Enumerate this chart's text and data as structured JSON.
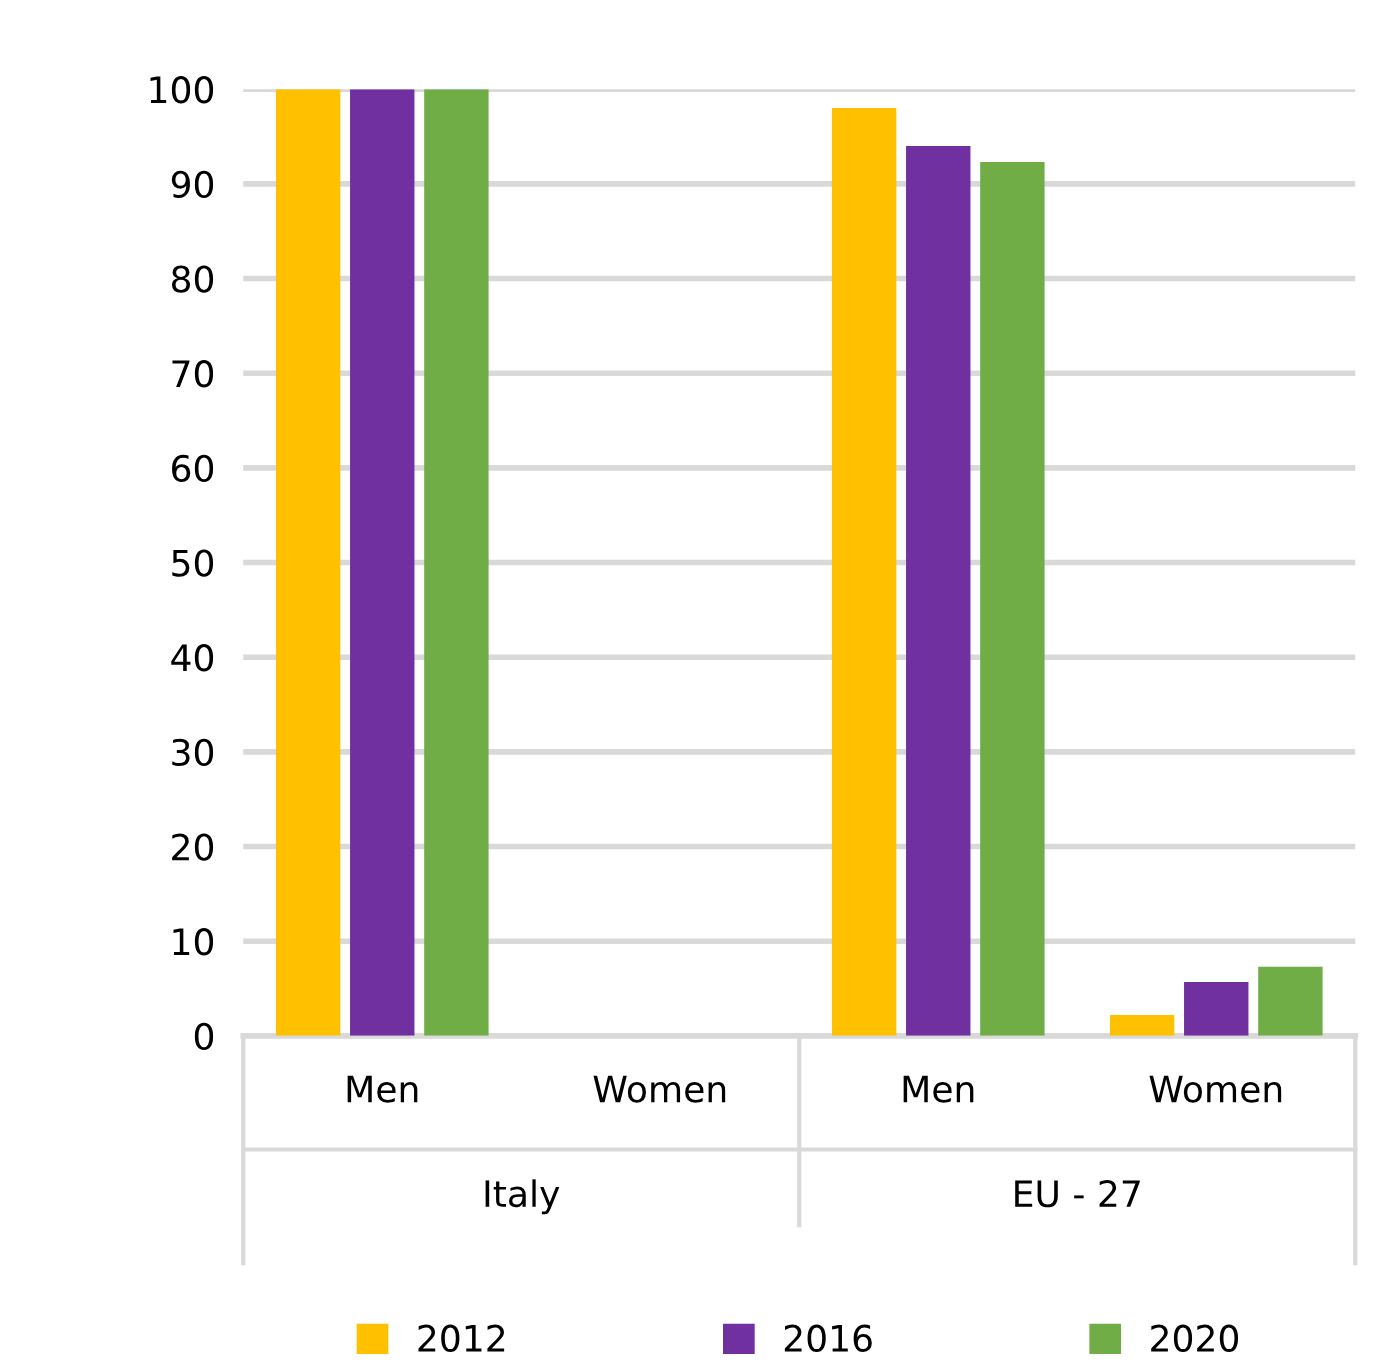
{
  "chart_data": {
    "type": "bar",
    "categories": [
      "Men",
      "Women",
      "Men",
      "Women"
    ],
    "series": [
      {
        "name": "2012",
        "color": "#ffc000",
        "values": [
          100,
          0,
          98,
          2.2
        ]
      },
      {
        "name": "2016",
        "color": "#7030a0",
        "values": [
          100,
          0,
          94,
          5.7
        ]
      },
      {
        "name": "2020",
        "color": "#70ad47",
        "values": [
          100,
          0,
          92.3,
          7.3
        ]
      }
    ],
    "annotations": [
      "Italy",
      "EU - 27"
    ],
    "ylim": [
      0,
      100
    ],
    "yticks": [
      0,
      10,
      20,
      30,
      40,
      50,
      60,
      70,
      80,
      90,
      100
    ],
    "grid": "y",
    "legend": "bottom"
  }
}
